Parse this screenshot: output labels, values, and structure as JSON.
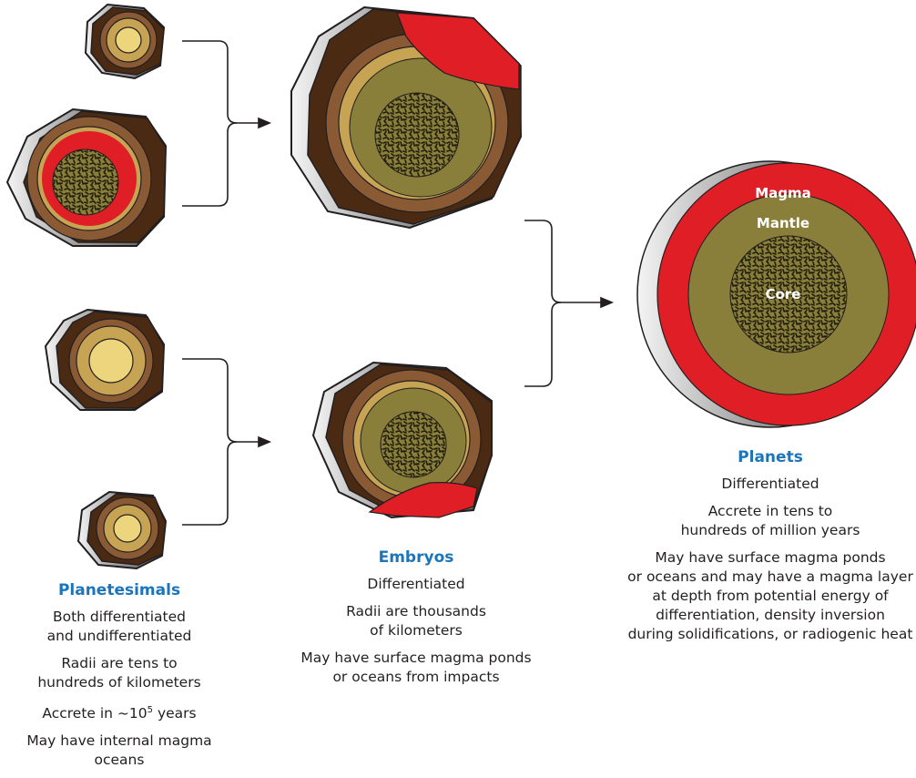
{
  "colors": {
    "shell_dark": "#4a2a12",
    "shell_mid": "#8a5a35",
    "mantle_olive": "#8a7f3a",
    "core_dark": "#2e2a14",
    "magma": "#e01e26",
    "light_yellow": "#ecd57c",
    "tan": "#c7a454",
    "heading_blue": "#1b75bb",
    "connector": "#231f20"
  },
  "planet_labels": {
    "magma": "Magma",
    "mantle": "Mantle",
    "core": "Core"
  },
  "planetesimals": {
    "title": "Planetesimals",
    "line1a": "Both differentiated",
    "line1b": "and undifferentiated",
    "line2a": "Radii are tens to",
    "line2b": "hundreds of kilometers",
    "line3_prefix": "Accrete in ~10",
    "line3_exp": "5",
    "line3_suffix": " years",
    "line4": "May have internal magma oceans"
  },
  "embryos": {
    "title": "Embryos",
    "line1": "Differentiated",
    "line2a": "Radii are thousands",
    "line2b": "of kilometers",
    "line3a": "May have surface magma ponds",
    "line3b": "or oceans from impacts"
  },
  "planets": {
    "title": "Planets",
    "line1": "Differentiated",
    "line2a": "Accrete in tens to",
    "line2b": "hundreds of million years",
    "line3a": "May have surface magma ponds",
    "line3b": "or oceans and may have a magma layer",
    "line3c": "at depth from potential energy of",
    "line3d": "differentiation, density inversion",
    "line3e": "during solidifications, or radiogenic heat"
  }
}
